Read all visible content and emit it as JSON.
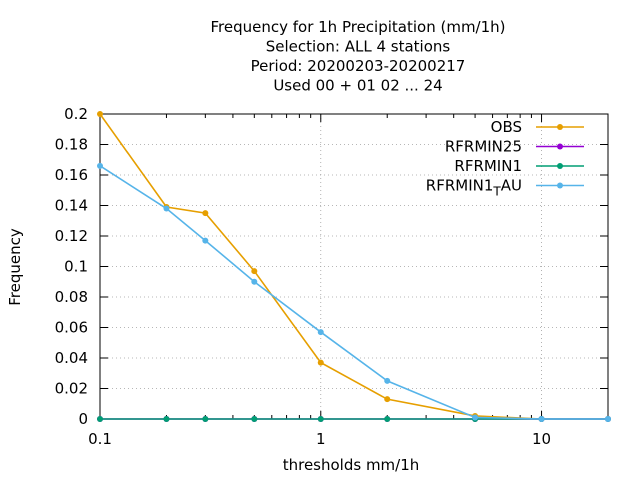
{
  "chart_data": {
    "type": "line",
    "title_lines": [
      "Frequency  for 1h Precipitation (mm/1h)",
      "Selection: ALL      4 stations",
      "Period: 20200203-20200217",
      "Used  00 + 01 02 ... 24"
    ],
    "xlabel": "thresholds mm/1h",
    "ylabel": "Frequency",
    "x_scale": "log",
    "xlim": [
      0.1,
      20
    ],
    "ylim": [
      0,
      0.2
    ],
    "x_ticks": [
      0.1,
      1,
      10
    ],
    "x_tick_labels": [
      "0.1",
      "1",
      "10"
    ],
    "y_ticks": [
      0,
      0.02,
      0.04,
      0.06,
      0.08,
      0.1,
      0.12,
      0.14,
      0.16,
      0.18,
      0.2
    ],
    "y_tick_labels": [
      "0",
      "0.02",
      "0.04",
      "0.06",
      "0.08",
      "0.1",
      "0.12",
      "0.14",
      "0.16",
      "0.18",
      "0.2"
    ],
    "grid": true,
    "legend_position": "top-right",
    "x": [
      0.1,
      0.2,
      0.3,
      0.5,
      1,
      2,
      5,
      10,
      20
    ],
    "series": [
      {
        "name": "OBS",
        "color": "#e69f00",
        "values": [
          0.2,
          0.139,
          0.135,
          0.097,
          0.037,
          0.013,
          0.002,
          0.0,
          null
        ]
      },
      {
        "name": "RFRMIN25",
        "color": "#9400d3",
        "values": [
          0,
          0,
          0,
          0,
          0,
          0,
          0,
          0,
          0
        ]
      },
      {
        "name": "RFRMIN1",
        "color": "#009e73",
        "values": [
          0,
          0,
          0,
          0,
          0,
          0,
          0,
          0,
          0
        ]
      },
      {
        "name": "RFRMIN1_TAU",
        "legend_main": "RFRMIN1",
        "legend_sub": "T",
        "legend_tail": "AU",
        "color": "#56b4e9",
        "values": [
          0.166,
          0.138,
          0.117,
          0.09,
          0.057,
          0.025,
          0.001,
          0.0,
          0.0
        ]
      }
    ]
  }
}
